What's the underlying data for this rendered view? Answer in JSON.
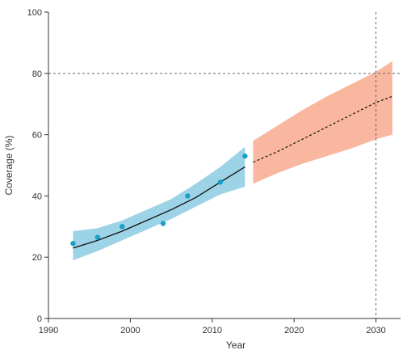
{
  "chart_data": {
    "type": "line",
    "title": "",
    "xlabel": "Year",
    "ylabel": "Coverage (%)",
    "xlim": [
      1990,
      2033
    ],
    "ylim": [
      0,
      100
    ],
    "xticks": [
      1990,
      2000,
      2010,
      2020,
      2030
    ],
    "yticks": [
      0,
      20,
      40,
      60,
      80,
      100
    ],
    "grid": false,
    "observed_points": {
      "x": [
        1993,
        1996,
        1999,
        2004,
        2007,
        2011,
        2014
      ],
      "y": [
        24.5,
        26.5,
        30,
        31,
        40,
        44.5,
        53
      ]
    },
    "fitted_trend": {
      "x": [
        1993,
        1996,
        1999,
        2002,
        2005,
        2008,
        2011,
        2014
      ],
      "y": [
        23,
        25.5,
        28.5,
        32,
        35.5,
        39.5,
        44.5,
        49.5
      ]
    },
    "fitted_band": {
      "x": [
        1993,
        1996,
        1999,
        2002,
        2005,
        2008,
        2011,
        2014
      ],
      "lower": [
        19,
        22,
        25.5,
        29,
        32.5,
        36.5,
        40.5,
        43
      ],
      "upper": [
        28.5,
        29.5,
        32,
        35.5,
        39,
        44,
        49.5,
        56
      ]
    },
    "projection_trend": {
      "x": [
        2015,
        2018,
        2021,
        2024,
        2027,
        2030,
        2032
      ],
      "y": [
        51,
        54.5,
        58.5,
        62.5,
        66.5,
        70.5,
        72.5
      ]
    },
    "projection_band": {
      "x": [
        2015,
        2018,
        2021,
        2024,
        2027,
        2030,
        2032
      ],
      "lower": [
        44,
        47.5,
        50.5,
        53,
        55.5,
        58.5,
        60
      ],
      "upper": [
        58,
        63,
        68,
        72.5,
        76.5,
        80.5,
        84
      ]
    },
    "reference_lines": {
      "horizontal_y": 80,
      "vertical_x": 2030
    },
    "colors": {
      "points": "#1aa0c8",
      "fitted_band": "#9dd3e6",
      "projection_band": "#f9b7a0",
      "trend_line": "#111111",
      "reference_line": "#666666",
      "axis": "#333333"
    }
  }
}
